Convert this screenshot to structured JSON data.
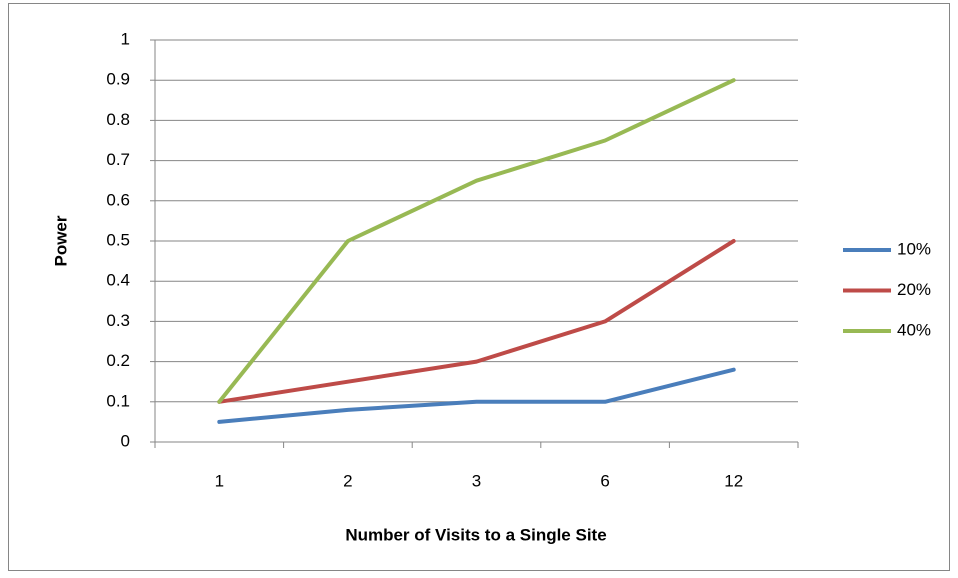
{
  "chart_data": {
    "type": "line",
    "x_label": "Number of Visits to a Single Site",
    "y_label": "Power",
    "categories": [
      "1",
      "2",
      "3",
      "6",
      "12"
    ],
    "series": [
      {
        "name": "10%",
        "color": "#4a7ebb",
        "values": [
          0.05,
          0.08,
          0.1,
          0.1,
          0.18
        ]
      },
      {
        "name": "20%",
        "color": "#be4b48",
        "values": [
          0.1,
          0.15,
          0.2,
          0.3,
          0.5
        ]
      },
      {
        "name": "40%",
        "color": "#98b954",
        "values": [
          0.1,
          0.5,
          0.65,
          0.75,
          0.9
        ]
      }
    ],
    "ylim": [
      0,
      1
    ],
    "yticks": [
      0,
      0.1,
      0.2,
      0.3,
      0.4,
      0.5,
      0.6,
      0.7,
      0.8,
      0.9,
      1
    ],
    "grid": true,
    "legend": "right"
  }
}
